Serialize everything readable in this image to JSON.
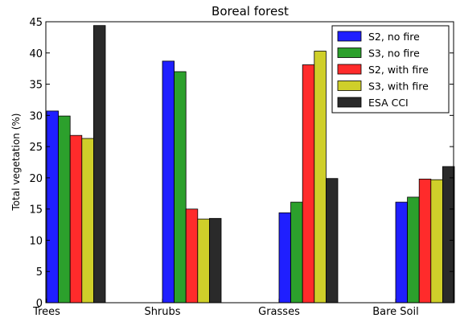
{
  "chart_data": {
    "type": "bar",
    "title": "Boreal forest",
    "xlabel": "",
    "ylabel": "Total vegetation (%)",
    "ylim": [
      0,
      45
    ],
    "yticks": [
      0,
      5,
      10,
      15,
      20,
      25,
      30,
      35,
      40,
      45
    ],
    "categories": [
      "Trees",
      "Shrubs",
      "Grasses",
      "Bare Soil"
    ],
    "series": [
      {
        "name": "S2, no fire",
        "color": "#1f1fff",
        "values": [
          30.7,
          38.7,
          14.4,
          16.1
        ]
      },
      {
        "name": "S3, no fire",
        "color": "#2ca02c",
        "values": [
          29.9,
          37.0,
          16.1,
          16.9
        ]
      },
      {
        "name": "S2, with fire",
        "color": "#ff2b2b",
        "values": [
          26.8,
          15.0,
          38.1,
          19.8
        ]
      },
      {
        "name": "S3, with fire",
        "color": "#cfcf2a",
        "values": [
          26.3,
          13.4,
          40.3,
          19.7
        ]
      },
      {
        "name": "ESA CCI",
        "color": "#2a2a2a",
        "values": [
          44.4,
          13.5,
          19.9,
          21.8
        ]
      }
    ],
    "legend": "top-right",
    "grid": false
  }
}
